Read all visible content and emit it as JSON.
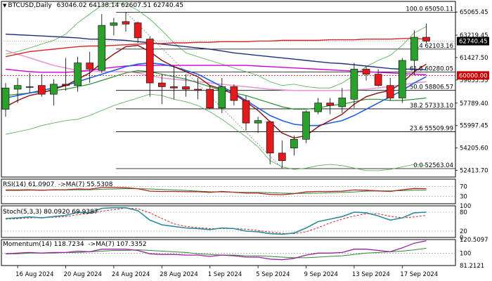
{
  "header": {
    "symbol": "BTCUSD,Daily",
    "ohlc": "63046.02 64138.14 62607.51 62740.45",
    "direction_icon": "triangle-down-icon"
  },
  "price_axis": {
    "ticks": [
      "65065.45",
      "63219.45",
      "61427.50",
      "59635.55",
      "57789.40",
      "55997.45",
      "54205.60",
      "52413.70"
    ],
    "current_price_label": "62740.45",
    "level_label": "60000.00"
  },
  "fibonacci": {
    "levels": [
      {
        "label": "100.0 65050.11",
        "price": 65050.11
      },
      {
        "label": "76.4 62103.16",
        "price": 62103.16
      },
      {
        "label": "61.8 60280.05",
        "price": 60280.05
      },
      {
        "label": "50.0 58806.57",
        "price": 58806.57
      },
      {
        "label": "38.2 57333.10",
        "price": 57333.1
      },
      {
        "label": "23.6 55509.99",
        "price": 55509.99
      },
      {
        "label": "0.0 52563.04",
        "price": 52563.04
      }
    ]
  },
  "rsi": {
    "title": "RSI(14) 61.0907  ->MA(7) 55.5308",
    "ticks": [
      "70",
      "30"
    ]
  },
  "stoch": {
    "title": "Stoch(5,3,3) 80.0920 69.9387",
    "ticks": [
      "100",
      "80",
      "20",
      "0"
    ]
  },
  "momentum": {
    "title": "Momentum(14) 118.7234  ->MA(7) 107.3352",
    "ticks": [
      "120.5097",
      "100",
      "81.2121"
    ]
  },
  "x_axis": {
    "labels": [
      "16 Aug 2024",
      "20 Aug 2024",
      "24 Aug 2024",
      "28 Aug 2024",
      "1 Sep 2024",
      "5 Sep 2024",
      "9 Sep 2024",
      "13 Sep 2024",
      "17 Sep 2024"
    ]
  },
  "colors": {
    "bull": "#2ca02c",
    "bear": "#e31a1c",
    "ma_navy": "#1f2f7a",
    "ma_red": "#d62728",
    "ma_magenta": "#d400d4",
    "ma_pink": "#e89ad6",
    "ma_blue": "#1f5fe0",
    "ma_darkred": "#8b1010",
    "ma_green": "#2e8b2e",
    "bollinger": "#4daf4a",
    "level_line": "#cc0000"
  },
  "chart_data": {
    "type": "candlestick",
    "symbol": "BTCUSD",
    "timeframe": "Daily",
    "x": [
      "2024-08-15",
      "2024-08-16",
      "2024-08-17",
      "2024-08-18",
      "2024-08-19",
      "2024-08-20",
      "2024-08-21",
      "2024-08-22",
      "2024-08-23",
      "2024-08-24",
      "2024-08-25",
      "2024-08-26",
      "2024-08-27",
      "2024-08-28",
      "2024-08-29",
      "2024-08-30",
      "2024-08-31",
      "2024-09-01",
      "2024-09-02",
      "2024-09-03",
      "2024-09-04",
      "2024-09-05",
      "2024-09-06",
      "2024-09-07",
      "2024-09-08",
      "2024-09-09",
      "2024-09-10",
      "2024-09-11",
      "2024-09-12",
      "2024-09-13",
      "2024-09-14",
      "2024-09-15",
      "2024-09-16",
      "2024-09-17",
      "2024-09-18",
      "2024-09-19"
    ],
    "open": [
      57300,
      58900,
      59100,
      59200,
      58500,
      59300,
      59200,
      61000,
      60400,
      64000,
      64300,
      64200,
      62900,
      59400,
      59100,
      59100,
      58900,
      58900,
      57400,
      59100,
      58000,
      56200,
      56300,
      53800,
      54200,
      54900,
      57100,
      57800,
      57500,
      58100,
      60500,
      60100,
      59200,
      58200,
      61200,
      63050
    ],
    "high": [
      59400,
      59800,
      60200,
      60100,
      59700,
      61400,
      61500,
      61900,
      64900,
      64600,
      65050,
      64300,
      63100,
      60100,
      60800,
      60100,
      59800,
      59200,
      59800,
      59300,
      58400,
      56700,
      56400,
      54800,
      55200,
      57200,
      58200,
      58200,
      59000,
      61000,
      60700,
      60500,
      59800,
      61400,
      63600,
      64140
    ],
    "low": [
      56700,
      57800,
      58600,
      58300,
      57600,
      58800,
      58700,
      59400,
      60200,
      63200,
      63500,
      62600,
      58300,
      57700,
      58100,
      58300,
      58100,
      57300,
      57000,
      57600,
      55600,
      55400,
      52900,
      52600,
      53600,
      54600,
      56900,
      56900,
      57000,
      57400,
      59600,
      59100,
      58000,
      57800,
      60000,
      62600
    ],
    "close": [
      59000,
      59200,
      59100,
      58500,
      59300,
      59200,
      61000,
      60500,
      64000,
      64200,
      64100,
      63000,
      59400,
      59100,
      59000,
      58900,
      58800,
      57400,
      59100,
      58000,
      56200,
      56400,
      53800,
      53200,
      54900,
      57100,
      57800,
      57600,
      58200,
      60500,
      60100,
      59200,
      58200,
      61200,
      63050,
      62740
    ],
    "ma_navy": [
      63300,
      63250,
      63200,
      63150,
      63100,
      63050,
      63000,
      62900,
      62900,
      62850,
      62800,
      62700,
      62600,
      62500,
      62400,
      62300,
      62200,
      62100,
      61950,
      61800,
      61700,
      61600,
      61500,
      61400,
      61300,
      61200,
      61100,
      61000,
      60950,
      60850,
      60750,
      60650,
      60550,
      60500,
      60500,
      60450
    ],
    "ma_red": [
      61500,
      61700,
      61900,
      62000,
      62100,
      62200,
      62300,
      62350,
      62350,
      62400,
      62450,
      62500,
      62550,
      62550,
      62600,
      62600,
      62650,
      62650,
      62700,
      62700,
      62700,
      62750,
      62750,
      62800,
      62800,
      62800,
      62800,
      62850,
      62850,
      62850,
      62900,
      62900,
      62900,
      62950,
      62950,
      62900
    ],
    "ma_magenta": [
      60500,
      60400,
      60300,
      60250,
      60250,
      60250,
      60300,
      60400,
      60550,
      60650,
      60750,
      60800,
      60800,
      60800,
      60800,
      60800,
      60800,
      60800,
      60800,
      60800,
      60800,
      60750,
      60700,
      60650,
      60600,
      60550,
      60500,
      60450,
      60400,
      60350,
      60300,
      60250,
      60200,
      60150,
      60100,
      60050
    ],
    "ma_pink": [
      62000,
      61700,
      61400,
      61100,
      60800,
      60600,
      60400,
      60350,
      60300,
      60300,
      60300,
      60200,
      60000,
      59800,
      59700,
      59600,
      59500,
      59400,
      59300,
      59200,
      59100,
      59000,
      58900,
      58850,
      58800,
      58800,
      58800,
      58800,
      58800,
      58850,
      58900,
      59000,
      59100,
      59250,
      59400,
      59500
    ],
    "ma_blue": [
      58200,
      58400,
      58600,
      58800,
      59000,
      59200,
      59500,
      59800,
      60100,
      60400,
      60700,
      60900,
      61000,
      60900,
      60700,
      60400,
      60100,
      59600,
      59100,
      58600,
      58000,
      57400,
      56800,
      56400,
      56100,
      56000,
      56000,
      56200,
      56400,
      56800,
      57300,
      57800,
      58300,
      58800,
      59400,
      59900
    ],
    "ma_darkred": [
      57500,
      58000,
      58400,
      58600,
      58900,
      59200,
      59700,
      60200,
      61000,
      61700,
      62300,
      62400,
      61900,
      61200,
      60700,
      60300,
      59900,
      59200,
      58900,
      58500,
      57900,
      57200,
      56300,
      55400,
      55000,
      55200,
      55900,
      56400,
      56900,
      57700,
      58300,
      58600,
      58800,
      59400,
      60300,
      60900
    ],
    "ma_green": [
      58400,
      58500,
      58600,
      58700,
      58800,
      58900,
      59100,
      59300,
      59600,
      59900,
      60200,
      60400,
      60300,
      60100,
      59900,
      59700,
      59400,
      59100,
      58800,
      58600,
      58400,
      58100,
      57800,
      57500,
      57300,
      57300,
      57400,
      57600,
      57700,
      57900,
      58100,
      58100,
      58000,
      58000,
      58100,
      58200
    ],
    "bb_upper": [
      61700,
      61900,
      62200,
      62500,
      62800,
      63300,
      64200,
      64900,
      65600,
      65800,
      65700,
      65200,
      64500,
      63600,
      62600,
      61800,
      61500,
      61200,
      60900,
      60600,
      60300,
      60000,
      59500,
      59200,
      59300,
      59100,
      59000,
      59000,
      59400,
      60000,
      60700,
      61200,
      61600,
      62400,
      63400,
      63900
    ],
    "bb_lower": [
      55300,
      55500,
      55700,
      56000,
      56200,
      56400,
      56500,
      56800,
      57200,
      57600,
      57900,
      58200,
      58500,
      58400,
      58100,
      57900,
      57600,
      57100,
      56500,
      55800,
      55100,
      54300,
      53200,
      52700,
      52500,
      52600,
      52800,
      52900,
      52800,
      52600,
      52400,
      52400,
      52500,
      52700,
      52900,
      52800
    ],
    "fib_levels": [
      {
        "ratio": 100.0,
        "price": 65050.11
      },
      {
        "ratio": 76.4,
        "price": 62103.16
      },
      {
        "ratio": 61.8,
        "price": 60280.05
      },
      {
        "ratio": 50.0,
        "price": 58806.57
      },
      {
        "ratio": 38.2,
        "price": 57333.1
      },
      {
        "ratio": 23.6,
        "price": 55509.99
      },
      {
        "ratio": 0.0,
        "price": 52563.04
      }
    ],
    "horizontal_level": 60000.0,
    "ylim": [
      52000,
      65800
    ],
    "rsi": [
      56,
      56,
      57,
      55,
      57,
      57,
      60,
      59,
      66,
      66,
      65,
      61,
      51,
      50,
      50,
      49,
      49,
      46,
      50,
      47,
      43,
      43,
      38,
      37,
      41,
      48,
      50,
      50,
      51,
      56,
      55,
      52,
      50,
      57,
      62,
      61.09
    ],
    "rsi_ma": [
      54,
      54,
      55,
      55,
      56,
      56,
      57,
      57,
      59,
      60,
      61,
      61,
      60,
      58,
      56,
      54,
      51,
      49,
      48,
      47,
      46,
      46,
      45,
      43,
      42,
      42,
      43,
      45,
      46,
      48,
      51,
      52,
      52,
      53,
      55,
      55.53
    ],
    "stoch_k": [
      60,
      62,
      65,
      62,
      66,
      70,
      80,
      78,
      92,
      94,
      94,
      85,
      55,
      40,
      35,
      30,
      28,
      25,
      30,
      28,
      20,
      18,
      12,
      10,
      14,
      30,
      50,
      58,
      66,
      80,
      78,
      68,
      55,
      62,
      78,
      80.09
    ],
    "stoch_d": [
      58,
      59,
      62,
      63,
      64,
      66,
      72,
      76,
      83,
      88,
      93,
      91,
      78,
      60,
      43,
      35,
      31,
      28,
      28,
      28,
      26,
      22,
      17,
      13,
      12,
      18,
      31,
      46,
      58,
      68,
      75,
      75,
      67,
      62,
      65,
      69.94
    ],
    "momentum": [
      99,
      100,
      101,
      100,
      101,
      101,
      103,
      102,
      106,
      106,
      106,
      104,
      99,
      98,
      98,
      97,
      97,
      95,
      97,
      96,
      94,
      94,
      91,
      90,
      92,
      97,
      100,
      100,
      101,
      106,
      106,
      104,
      102,
      108,
      115,
      118.72
    ],
    "momentum_ma": [
      99,
      99,
      100,
      100,
      100,
      101,
      101,
      102,
      103,
      104,
      104,
      105,
      104,
      103,
      102,
      101,
      99,
      98,
      97,
      97,
      96,
      96,
      95,
      94,
      93,
      93,
      94,
      95,
      96,
      98,
      100,
      101,
      102,
      103,
      105,
      107.34
    ],
    "rsi_ticks": [
      70,
      30
    ],
    "stoch_ticks": [
      100,
      80,
      20,
      0
    ],
    "momentum_range": [
      81.2121,
      120.5097
    ]
  }
}
